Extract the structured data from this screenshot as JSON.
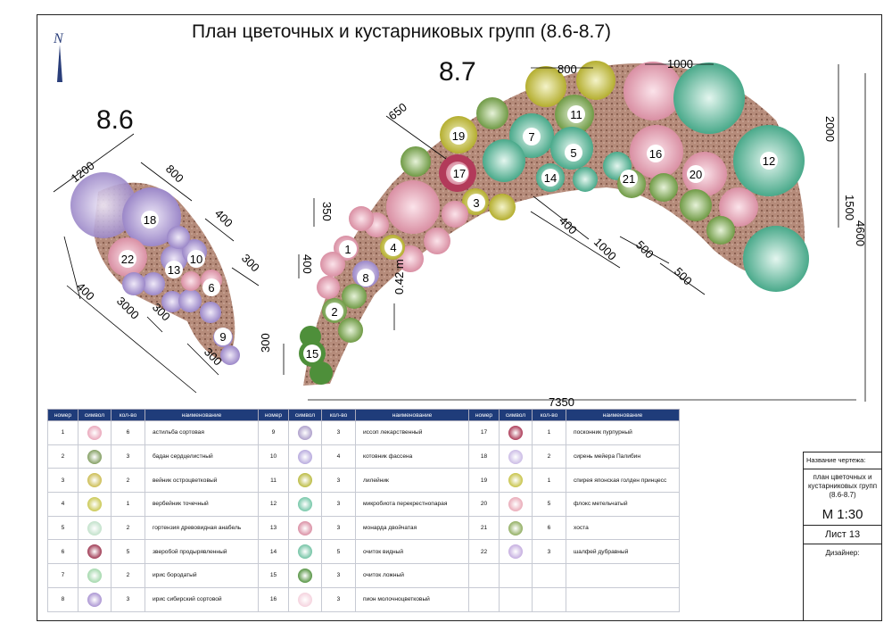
{
  "title": "План цветочных и кустарниковых групп (8.6-8.7)",
  "north_symbol": "N",
  "plans": {
    "p86": "8.6",
    "p87": "8.7"
  },
  "plants_86": [
    {
      "n": "18",
      "color": "#b7a7d8"
    },
    {
      "n": "22",
      "color": "#ffffff"
    },
    {
      "n": "10",
      "color": "#ffffff"
    },
    {
      "n": "13",
      "color": "#ffffff"
    },
    {
      "n": "6",
      "color": "#ffffff"
    },
    {
      "n": "9",
      "color": "#ffffff"
    }
  ],
  "plants_87": [
    {
      "n": "1"
    },
    {
      "n": "2"
    },
    {
      "n": "3"
    },
    {
      "n": "4"
    },
    {
      "n": "5"
    },
    {
      "n": "7"
    },
    {
      "n": "8"
    },
    {
      "n": "11"
    },
    {
      "n": "12"
    },
    {
      "n": "14"
    },
    {
      "n": "15"
    },
    {
      "n": "16"
    },
    {
      "n": "17"
    },
    {
      "n": "19"
    },
    {
      "n": "20"
    },
    {
      "n": "21"
    }
  ],
  "dimensions": {
    "d1200": "1200",
    "d800a": "800",
    "d400a": "400",
    "d300a": "300",
    "d400b": "400",
    "d300b": "300",
    "d3000": "3000",
    "d300c": "300",
    "d650": "650",
    "d800b": "800",
    "d1000a": "1000",
    "d2000": "2000",
    "d1500": "1500",
    "d4600": "4600",
    "d350": "350",
    "d400c": "400",
    "d042": "0.42 m",
    "d300d": "300",
    "d400d": "400",
    "d1000b": "1000",
    "d500a": "500",
    "d500b": "500",
    "d7350": "7350"
  },
  "legend": {
    "headers": [
      "номер",
      "символ",
      "кол-во",
      "наименование"
    ],
    "col1": [
      {
        "n": "1",
        "qty": "6",
        "name": "астильба сортовая",
        "color": "#e9a3b8"
      },
      {
        "n": "2",
        "qty": "3",
        "name": "бадан сердцелистный",
        "color": "#7d9a5a"
      },
      {
        "n": "3",
        "qty": "2",
        "name": "вейник остроцветковый",
        "color": "#c9b94a"
      },
      {
        "n": "4",
        "qty": "1",
        "name": "вербейник точечный",
        "color": "#c7c54a"
      },
      {
        "n": "5",
        "qty": "2",
        "name": "гортензия древовидная анабель",
        "color": "#bfe0c8"
      },
      {
        "n": "6",
        "qty": "5",
        "name": "зверобой продырявленный",
        "color": "#9a2f4a"
      },
      {
        "n": "7",
        "qty": "2",
        "name": "ирис бородатый",
        "color": "#9fd6a8"
      },
      {
        "n": "8",
        "qty": "3",
        "name": "ирис сибирский сортовой",
        "color": "#a68fd0"
      }
    ],
    "col2": [
      {
        "n": "9",
        "qty": "3",
        "name": "иссоп лекарственный",
        "color": "#a99ac8"
      },
      {
        "n": "10",
        "qty": "4",
        "name": "котовник фассена",
        "color": "#b4a6dc"
      },
      {
        "n": "11",
        "qty": "3",
        "name": "лилейник",
        "color": "#b8b83a"
      },
      {
        "n": "12",
        "qty": "3",
        "name": "микробиота перекрестнопарая",
        "color": "#6fc4a4"
      },
      {
        "n": "13",
        "qty": "3",
        "name": "монарда двойчатая",
        "color": "#d88aa0"
      },
      {
        "n": "14",
        "qty": "5",
        "name": "очиток видный",
        "color": "#6cc0a0"
      },
      {
        "n": "15",
        "qty": "3",
        "name": "очиток ложный",
        "color": "#4e8f3a"
      },
      {
        "n": "16",
        "qty": "3",
        "name": "пион молочноцветковый",
        "color": "#f4d0dc"
      }
    ],
    "col3": [
      {
        "n": "17",
        "qty": "1",
        "name": "посконник пурпурный",
        "color": "#a8304e"
      },
      {
        "n": "18",
        "qty": "2",
        "name": "сирень мейера Палибин",
        "color": "#c8b8e4"
      },
      {
        "n": "19",
        "qty": "1",
        "name": "спирея японская голден принцесс",
        "color": "#c4c040"
      },
      {
        "n": "20",
        "qty": "5",
        "name": "флокс метельчатый",
        "color": "#e8a6b4"
      },
      {
        "n": "21",
        "qty": "6",
        "name": "хоста",
        "color": "#8caa5a"
      },
      {
        "n": "22",
        "qty": "3",
        "name": "шалфей дубравный",
        "color": "#c2a9de"
      }
    ]
  },
  "stamp": {
    "label": "Название чертежа:",
    "drawing_title": "план цветочных и кустарниковых групп (8.6-8.7)",
    "scale": "М 1:30",
    "sheet": "Лист 13",
    "designer": "Дизайнер:"
  }
}
